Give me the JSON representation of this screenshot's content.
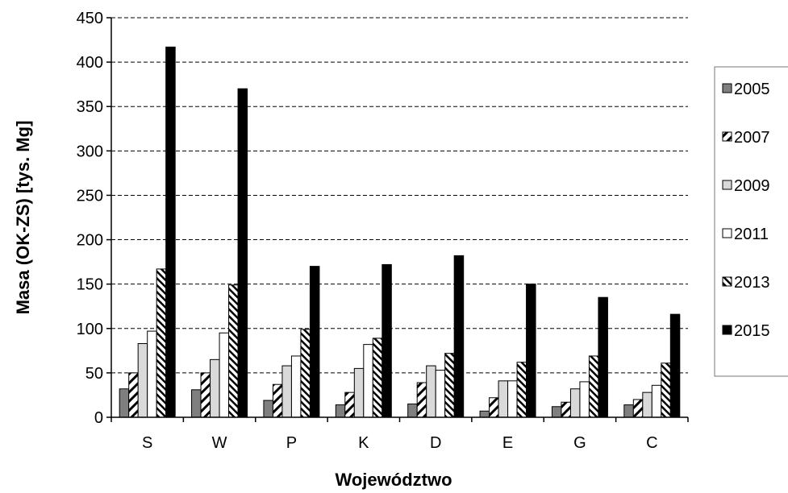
{
  "chart_data": {
    "type": "bar",
    "title": "",
    "xlabel": "Województwo",
    "ylabel": "Masa (OK-ZS) [tys. Mg]",
    "ylim": [
      0,
      450
    ],
    "yticks": [
      0,
      50,
      100,
      150,
      200,
      250,
      300,
      350,
      400,
      450
    ],
    "grid": "horizontal dashed",
    "legend_position": "right",
    "categories": [
      "S",
      "W",
      "P",
      "K",
      "D",
      "E",
      "G",
      "C"
    ],
    "series": [
      {
        "name": "2005",
        "fill": "gray",
        "values": [
          32,
          31,
          19,
          14,
          15,
          7,
          12,
          14
        ]
      },
      {
        "name": "2007",
        "fill": "hatch-diagonal",
        "values": [
          50,
          50,
          37,
          28,
          39,
          22,
          17,
          20
        ]
      },
      {
        "name": "2009",
        "fill": "lightgray",
        "values": [
          83,
          65,
          58,
          55,
          58,
          41,
          32,
          28
        ]
      },
      {
        "name": "2011",
        "fill": "white",
        "values": [
          97,
          95,
          69,
          82,
          53,
          41,
          40,
          36
        ]
      },
      {
        "name": "2013",
        "fill": "hatch-diagonal-dense",
        "values": [
          167,
          149,
          99,
          89,
          72,
          62,
          69,
          61
        ]
      },
      {
        "name": "2015",
        "fill": "black",
        "values": [
          417,
          370,
          170,
          172,
          182,
          150,
          135,
          116
        ]
      }
    ],
    "colors": {
      "dark_gray": "#7f7f7f",
      "light_gray": "#d9d9d9",
      "white": "#ffffff",
      "black": "#000000"
    }
  }
}
